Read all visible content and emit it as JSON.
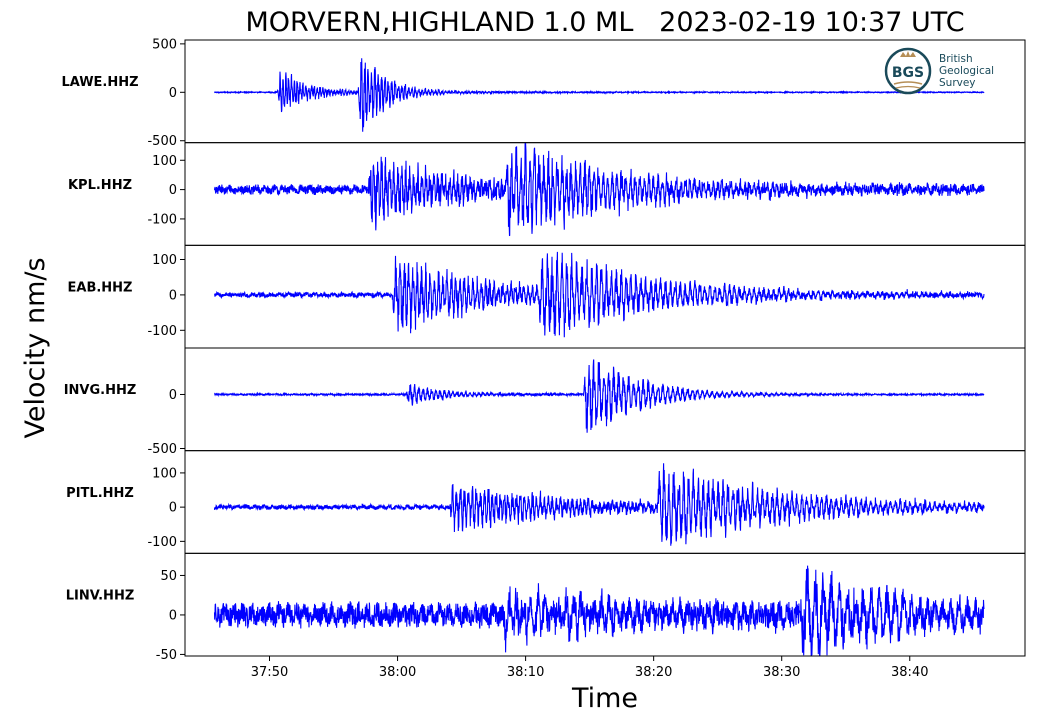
{
  "chart_data": {
    "type": "line",
    "title": "MORVERN,HIGHLAND 1.0 ML   2023-02-19 10:37 UTC",
    "xlabel": "Time",
    "ylabel": "Velocity nm/s",
    "x_tick_labels": [
      "37:50",
      "38:00",
      "38:10",
      "38:20",
      "38:30",
      "38:40"
    ],
    "x_ticks_seconds": [
      50,
      60,
      70,
      80,
      90,
      100
    ],
    "xlim_seconds": [
      43.4,
      109.0
    ],
    "trace_span_seconds": [
      45.7,
      105.8
    ],
    "line_color": "#0000ff",
    "logo": {
      "lines": [
        "British",
        "Geological",
        "Survey"
      ],
      "mark": "BGS"
    },
    "panels": [
      {
        "station": "LAWE.HHZ",
        "ylim": [
          -520,
          540
        ],
        "y_ticks": [
          500,
          0,
          -500
        ],
        "y_tick_labels": [
          "500",
          "0",
          "-500"
        ],
        "events": [
          {
            "t": 50.6,
            "amp": 250,
            "decay": 2.2,
            "freq": 4.5
          },
          {
            "t": 56.9,
            "amp": 520,
            "decay": 2.0,
            "freq": 3.8
          }
        ],
        "noise": 4,
        "coda": 25,
        "coda_decay": 14
      },
      {
        "station": "KPL.HHZ",
        "ylim": [
          -190,
          160
        ],
        "y_ticks": [
          100,
          0,
          -100
        ],
        "y_tick_labels": [
          "100",
          "0",
          "-100"
        ],
        "events": [
          {
            "t": 57.7,
            "amp": 125,
            "decay": 6,
            "freq": 3.2
          },
          {
            "t": 68.4,
            "amp": 185,
            "decay": 8,
            "freq": 2.8
          }
        ],
        "noise": 14,
        "coda": 30,
        "coda_decay": 30
      },
      {
        "station": "EAB.HHZ",
        "ylim": [
          -150,
          140
        ],
        "y_ticks": [
          100,
          0,
          -100
        ],
        "y_tick_labels": [
          "100",
          "0",
          "-100"
        ],
        "events": [
          {
            "t": 59.6,
            "amp": 115,
            "decay": 7,
            "freq": 3.0
          },
          {
            "t": 71.0,
            "amp": 135,
            "decay": 9,
            "freq": 2.6
          }
        ],
        "noise": 6,
        "coda": 14,
        "coda_decay": 30
      },
      {
        "station": "INVG.HHZ",
        "ylim": [
          -520,
          430
        ],
        "y_ticks": [
          0,
          -500
        ],
        "y_tick_labels": [
          "0",
          "-500"
        ],
        "events": [
          {
            "t": 60.6,
            "amp": 110,
            "decay": 3.0,
            "freq": 3.0
          },
          {
            "t": 74.5,
            "amp": 460,
            "decay": 4.0,
            "freq": 2.6
          }
        ],
        "noise": 6,
        "coda": 12,
        "coda_decay": 20
      },
      {
        "station": "PITL.HHZ",
        "ylim": [
          -135,
          165
        ],
        "y_ticks": [
          100,
          0,
          -100
        ],
        "y_tick_labels": [
          "100",
          "0",
          "-100"
        ],
        "events": [
          {
            "t": 64.1,
            "amp": 75,
            "decay": 8,
            "freq": 3.2
          },
          {
            "t": 80.2,
            "amp": 125,
            "decay": 10,
            "freq": 2.6
          }
        ],
        "noise": 6,
        "coda": 18,
        "coda_decay": 30
      },
      {
        "station": "LINV.HHZ",
        "ylim": [
          -52,
          78
        ],
        "y_ticks": [
          50,
          0,
          -50
        ],
        "y_tick_labels": [
          "50",
          "0",
          "-50"
        ],
        "events": [
          {
            "t": 68.2,
            "amp": 28,
            "decay": 14,
            "freq": 1.8
          },
          {
            "t": 91.4,
            "amp": 62,
            "decay": 8,
            "freq": 1.6
          }
        ],
        "noise": 13,
        "coda": 8,
        "coda_decay": 30
      }
    ]
  }
}
